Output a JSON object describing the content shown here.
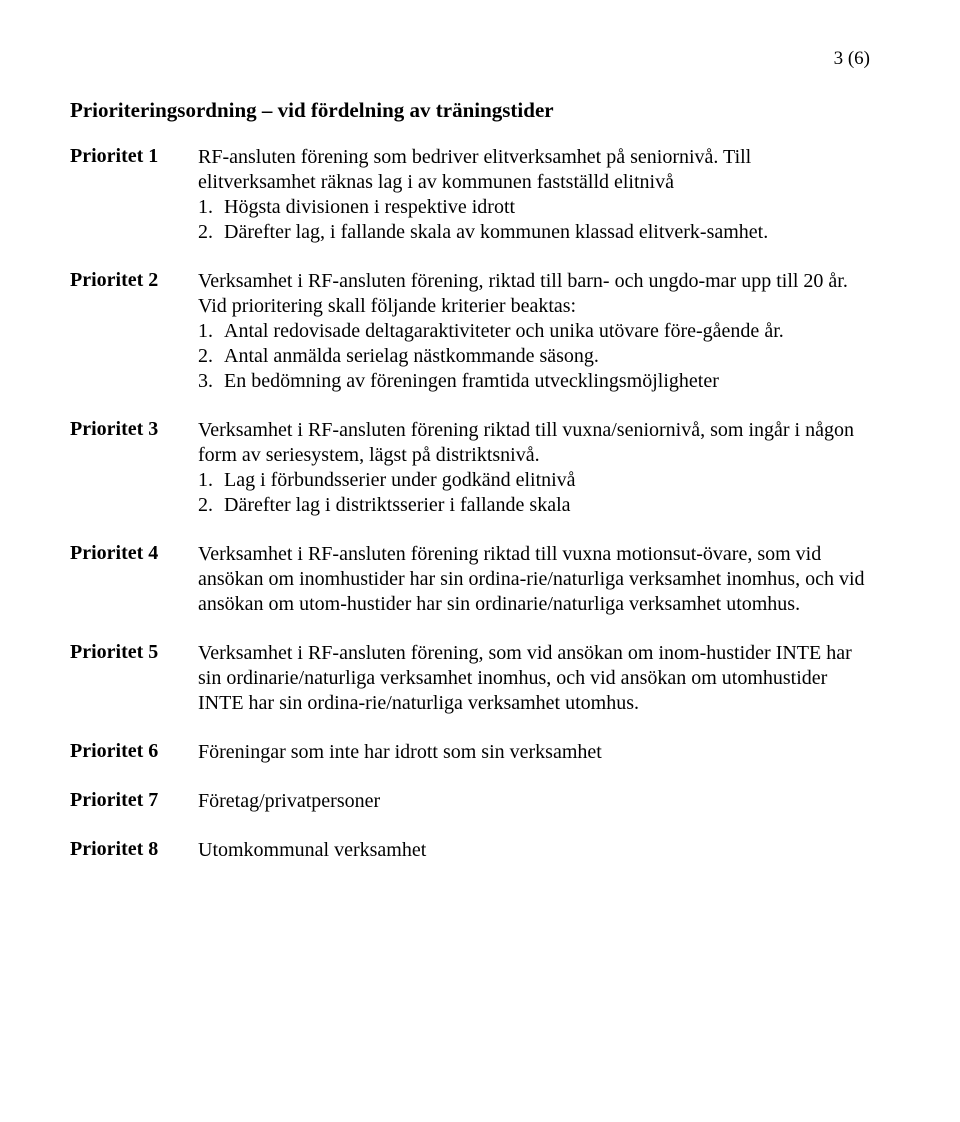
{
  "page_number": "3 (6)",
  "section_title": "Prioriteringsordning – vid fördelning av träningstider",
  "priorities": [
    {
      "label": "Prioritet 1",
      "intro": "RF-ansluten förening som bedriver elitverksamhet på seniornivå. Till elitverksamhet räknas lag i av kommunen fastställd elitnivå",
      "items": [
        "Högsta divisionen i respektive idrott",
        "Därefter lag, i fallande skala av kommunen klassad elitverk-samhet."
      ]
    },
    {
      "label": "Prioritet 2",
      "intro": "Verksamhet i RF-ansluten förening, riktad till barn- och ungdo-mar upp till 20 år.",
      "subintro": "Vid prioritering skall följande kriterier beaktas:",
      "items": [
        "Antal redovisade deltagaraktiviteter och unika utövare före-gående år.",
        "Antal anmälda serielag nästkommande säsong.",
        "En bedömning av föreningen framtida utvecklingsmöjligheter"
      ]
    },
    {
      "label": "Prioritet 3",
      "intro": "Verksamhet i RF-ansluten förening riktad till vuxna/seniornivå, som ingår i någon form av seriesystem, lägst på distriktsnivå.",
      "items": [
        "Lag i förbundsserier under godkänd elitnivå",
        "Därefter lag i distriktsserier i fallande skala"
      ]
    },
    {
      "label": "Prioritet 4",
      "intro": "Verksamhet i RF-ansluten förening riktad till vuxna motionsut-övare, som vid ansökan om inomhustider har sin ordina-rie/naturliga verksamhet inomhus, och vid ansökan om utom-hustider har sin ordinarie/naturliga verksamhet utomhus."
    },
    {
      "label": "Prioritet 5",
      "intro": "Verksamhet i RF-ansluten förening, som vid ansökan om inom-hustider INTE har sin ordinarie/naturliga verksamhet inomhus, och vid ansökan om utomhustider INTE har sin ordina-rie/naturliga verksamhet utomhus."
    },
    {
      "label": "Prioritet 6",
      "intro": "Föreningar som inte har idrott som sin verksamhet"
    },
    {
      "label": "Prioritet 7",
      "intro": "Företag/privatpersoner"
    },
    {
      "label": "Prioritet 8",
      "intro": "Utomkommunal verksamhet"
    }
  ],
  "ol_numbers": [
    "1.",
    "2.",
    "3."
  ]
}
